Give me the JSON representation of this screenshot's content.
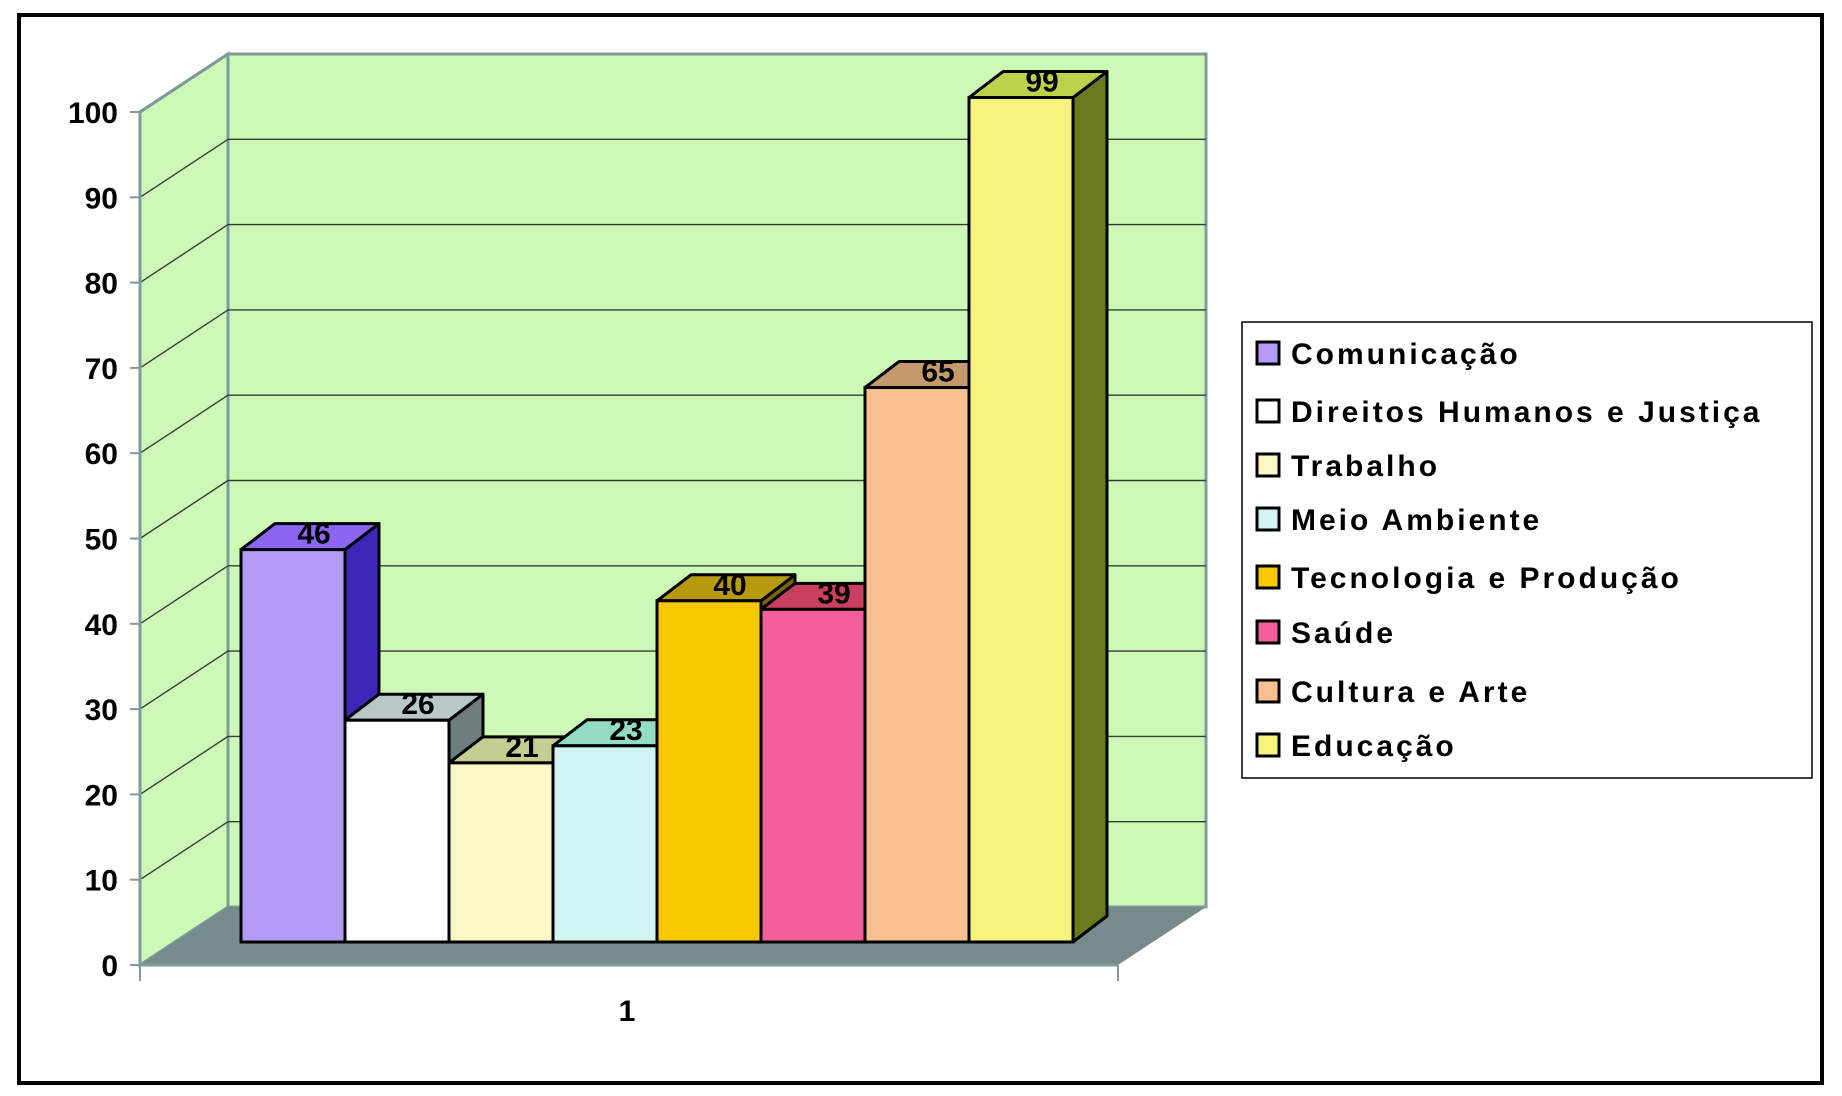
{
  "chart_data": {
    "type": "bar",
    "categories": [
      "1"
    ],
    "series": [
      {
        "name": "Comunicação",
        "values": [
          46
        ],
        "color": "#b39cf7",
        "side": "#3b27b8",
        "top": "#8c65f2"
      },
      {
        "name": "Direitos Humanos e Justiça",
        "values": [
          26
        ],
        "color": "#ffffff",
        "side": "#6e7e7e",
        "top": "#b8c8c8"
      },
      {
        "name": "Trabalho",
        "values": [
          21
        ],
        "color": "#fbf7c6",
        "side": "#8a8a55",
        "top": "#c3cf90"
      },
      {
        "name": "Meio Ambiente",
        "values": [
          23
        ],
        "color": "#d1f5f5",
        "side": "#5a8f8a",
        "top": "#93dcc4"
      },
      {
        "name": "Tecnologia e Produção",
        "values": [
          40
        ],
        "color": "#f8c800",
        "side": "#7a6400",
        "top": "#b89a10"
      },
      {
        "name": "Saúde",
        "values": [
          39
        ],
        "color": "#f6609a",
        "side": "#7a1c40",
        "top": "#c83f62"
      },
      {
        "name": "Cultura e Arte",
        "values": [
          65
        ],
        "color": "#f8c090",
        "side": "#7a5a3e",
        "top": "#c49a6c"
      },
      {
        "name": "Educação",
        "values": [
          99
        ],
        "color": "#f6f47c",
        "side": "#6b7a1c",
        "top": "#bcd24a"
      }
    ],
    "y_ticks": [
      "0",
      "10",
      "20",
      "30",
      "40",
      "50",
      "60",
      "70",
      "80",
      "90",
      "100"
    ],
    "ylim": [
      0,
      100
    ],
    "grid": true,
    "legend_position": "right",
    "colors": {
      "wall": "#ccf9b6",
      "floor": "#768c8c",
      "axis": "#7f9a9a"
    }
  }
}
